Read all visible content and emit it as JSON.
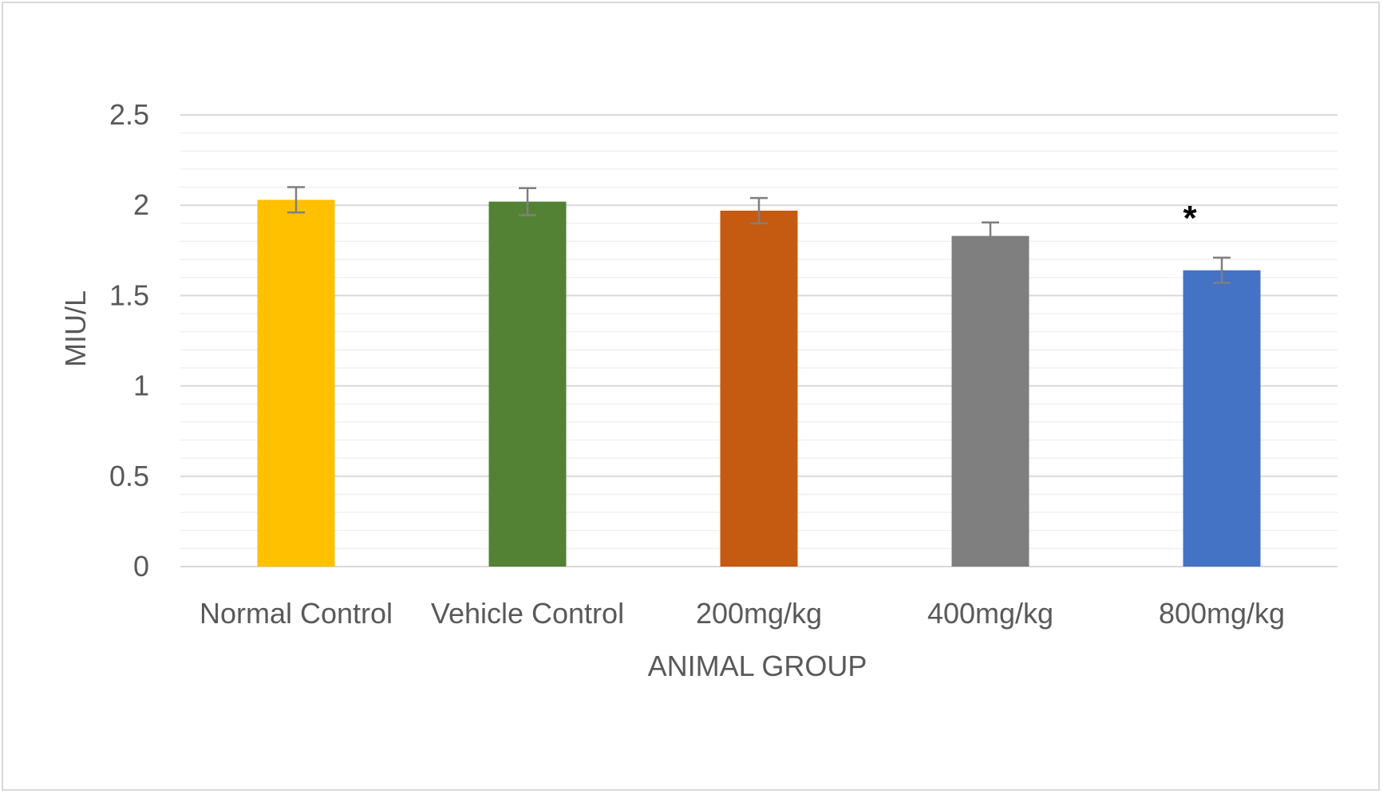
{
  "chart_data": {
    "type": "bar",
    "categories": [
      "Normal Control",
      "Vehicle Control",
      "200mg/kg",
      "400mg/kg",
      "800mg/kg"
    ],
    "values": [
      2.03,
      2.02,
      1.97,
      1.83,
      1.64
    ],
    "error": [
      0.07,
      0.075,
      0.07,
      0.075,
      0.07
    ],
    "colors": [
      "#FFC000",
      "#548235",
      "#C55A11",
      "#7F7F7F",
      "#4472C4"
    ],
    "annotations": [
      "",
      "",
      "",
      "",
      "*"
    ],
    "xlabel": "ANIMAL GROUP",
    "ylabel": "MIU/L",
    "ylim": [
      0,
      2.5
    ],
    "yticks": [
      0,
      0.5,
      1,
      1.5,
      2,
      2.5
    ],
    "ytick_labels": [
      "0",
      "0.5",
      "1",
      "1.5",
      "2",
      "2.5"
    ],
    "minor_step": 0.1,
    "grid": true,
    "legend": "none"
  }
}
